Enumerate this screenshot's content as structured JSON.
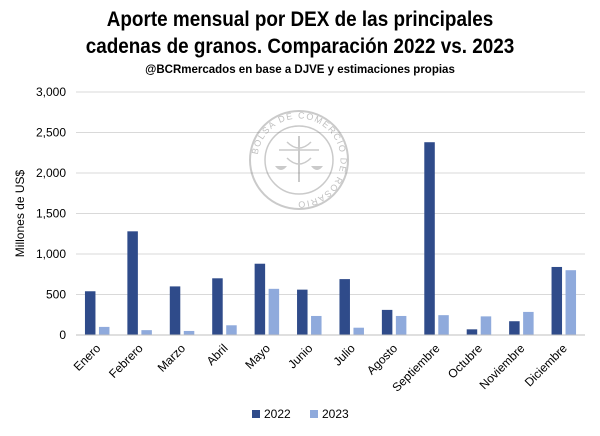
{
  "chart_data": {
    "type": "bar",
    "title_line1": "Aporte mensual por DEX de las principales",
    "title_line2": "cadenas de granos. Comparación 2022 vs. 2023",
    "subtitle": "@BCRmercados en base a  DJVE y estimaciones propias",
    "ylabel": "Millones de US$",
    "xlabel": "",
    "ylim": [
      0,
      3000
    ],
    "yticks": [
      0,
      500,
      1000,
      1500,
      2000,
      2500,
      3000
    ],
    "ytick_labels": [
      "0",
      "500",
      "1,000",
      "1,500",
      "2,000",
      "2,500",
      "3,000"
    ],
    "categories": [
      "Enero",
      "Febrero",
      "Marzo",
      "Abril",
      "Mayo",
      "Junio",
      "Julio",
      "Agosto",
      "Septiembre",
      "Octubre",
      "Noviembre",
      "Diciembre"
    ],
    "series": [
      {
        "name": "2022",
        "color": "#2f4b8a",
        "values": [
          540,
          1280,
          600,
          700,
          880,
          560,
          690,
          310,
          2380,
          70,
          170,
          840
        ]
      },
      {
        "name": "2023",
        "color": "#8faadc",
        "values": [
          100,
          60,
          50,
          120,
          570,
          235,
          90,
          235,
          245,
          230,
          285,
          800
        ]
      }
    ],
    "grid": "horizontal",
    "legend_position": "bottom",
    "watermark_text": "BOLSA DE COMERCIO DE ROSARIO"
  }
}
